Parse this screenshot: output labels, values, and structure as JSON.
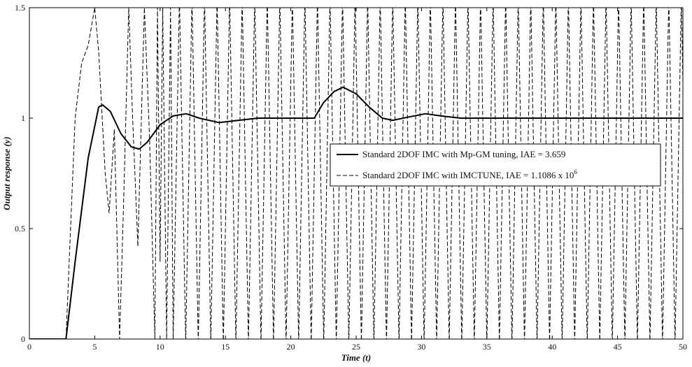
{
  "chart_data": {
    "type": "line",
    "title": "",
    "xlabel": "Time (t)",
    "ylabel": "Output response (y)",
    "xlim": [
      0,
      50
    ],
    "ylim": [
      0,
      1.5
    ],
    "xticks": [
      0,
      5,
      10,
      15,
      20,
      25,
      30,
      35,
      40,
      45,
      50
    ],
    "yticks": [
      0,
      0.5,
      1,
      1.5
    ],
    "ytick_labels": [
      "0",
      "0.5",
      "1",
      "1.5"
    ],
    "grid": false,
    "legend_position": "center-right",
    "series": [
      {
        "name": "Standard 2DOF IMC with Mp-GM tuning, IAE = 3.659",
        "style": "solid",
        "color": "#000000",
        "x": [
          0,
          2.8,
          3.5,
          4.5,
          5.3,
          5.6,
          6.2,
          7.0,
          7.8,
          8.4,
          9.0,
          10.0,
          11.0,
          12.0,
          13.0,
          14.5,
          16.0,
          17.5,
          19.0,
          20.5,
          21.8,
          22.5,
          23.3,
          24.0,
          25.0,
          26.0,
          27.0,
          27.8,
          29.0,
          30.3,
          31.5,
          33.0,
          35.0,
          40.0,
          45.0,
          50.0
        ],
        "y": [
          0,
          0,
          0.35,
          0.82,
          1.05,
          1.06,
          1.03,
          0.93,
          0.87,
          0.86,
          0.89,
          0.97,
          1.01,
          1.02,
          1.0,
          0.98,
          0.99,
          1.0,
          1.0,
          1.0,
          1.0,
          1.07,
          1.12,
          1.14,
          1.11,
          1.05,
          1.0,
          0.99,
          1.005,
          1.02,
          1.01,
          1.0,
          1.0,
          1.0,
          1.0,
          1.0
        ]
      },
      {
        "name": "Standard 2DOF IMC with IMCTUNE, IAE = 1.1086 x 10",
        "name_superscript": "6",
        "style": "dashed",
        "color": "#000000",
        "x": [
          0,
          2.8,
          3.5,
          4.0,
          4.5,
          5.0,
          5.3,
          5.8,
          6.1,
          6.5,
          6.9,
          7.2,
          7.6,
          7.9,
          8.3,
          8.8,
          9.2,
          9.6,
          9.8,
          10.0,
          10.2,
          10.5,
          10.8,
          11.0
        ],
        "y": [
          0,
          0,
          1.0,
          1.25,
          1.33,
          1.5,
          1.3,
          0.75,
          0.57,
          0.95,
          0,
          0.6,
          1.5,
          1.0,
          0.42,
          1.5,
          0.9,
          0,
          1.5,
          0.35,
          1.5,
          0,
          1.5,
          0
        ],
        "oscillation_start": 11.0,
        "oscillation_half_period": 0.48,
        "oscillation_range": [
          0,
          1.5
        ]
      }
    ]
  }
}
